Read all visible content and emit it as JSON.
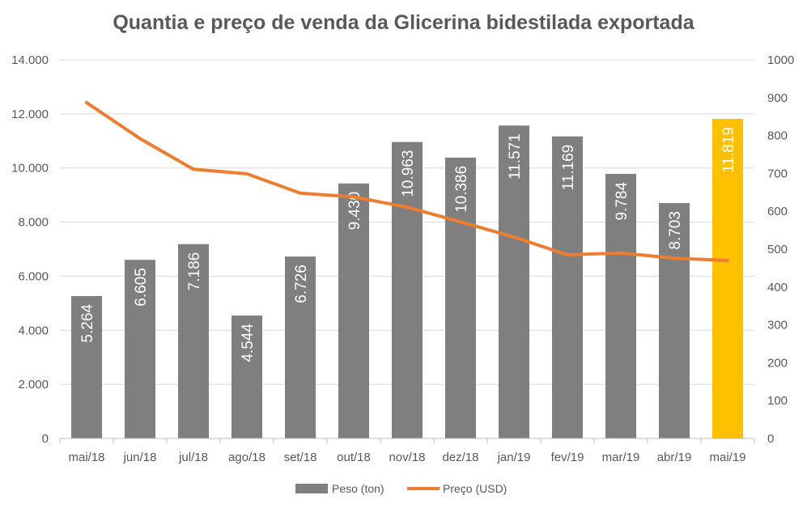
{
  "chart_data": {
    "type": "bar",
    "title": "Quantia e preço de venda da Glicerina bidestilada exportada",
    "categories": [
      "mai/18",
      "jun/18",
      "jul/18",
      "ago/18",
      "set/18",
      "out/18",
      "nov/18",
      "dez/18",
      "jan/19",
      "fev/19",
      "mar/19",
      "abr/19",
      "mai/19"
    ],
    "series": [
      {
        "name": "Peso (ton)",
        "type": "bar",
        "axis": "left",
        "values": [
          5264,
          6605,
          7186,
          4544,
          6726,
          9430,
          10963,
          10386,
          11571,
          11169,
          9784,
          8703,
          11819
        ],
        "labels": [
          "5.264",
          "6.605",
          "7.186",
          "4.544",
          "6.726",
          "9.430",
          "10.963",
          "10.386",
          "11.571",
          "11.169",
          "9.784",
          "8.703",
          "11.819"
        ],
        "color": "#7f7f7f",
        "highlight_color": "#ffc000",
        "highlight_index": 12
      },
      {
        "name": "Preço (USD)",
        "type": "line",
        "axis": "right",
        "values": [
          887,
          792,
          711,
          699,
          648,
          638,
          611,
          572,
          532,
          485,
          490,
          476,
          470
        ],
        "color": "#ed7d31"
      }
    ],
    "y_left": {
      "min": 0,
      "max": 14000,
      "ticks": [
        0,
        2000,
        4000,
        6000,
        8000,
        10000,
        12000,
        14000
      ],
      "tick_labels": [
        "0",
        "2.000",
        "4.000",
        "6.000",
        "8.000",
        "10.000",
        "12.000",
        "14.000"
      ]
    },
    "y_right": {
      "min": 0,
      "max": 1000,
      "ticks": [
        0,
        100,
        200,
        300,
        400,
        500,
        600,
        700,
        800,
        900,
        1000
      ],
      "tick_labels": [
        "0",
        "100",
        "200",
        "300",
        "400",
        "500",
        "600",
        "700",
        "800",
        "900",
        "1000"
      ]
    },
    "grid": true,
    "legend_position": "bottom"
  }
}
